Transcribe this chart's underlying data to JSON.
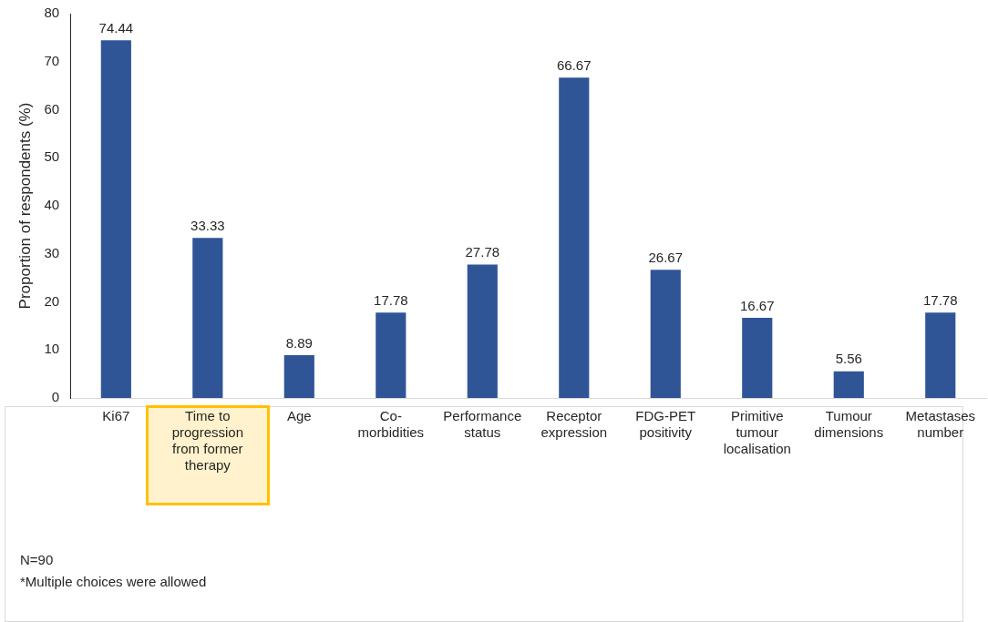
{
  "chart_data": {
    "type": "bar",
    "ylabel": "Proportion of respondents (%)",
    "categories": [
      "Ki67",
      "Time to progression from former therapy",
      "Age",
      "Co-morbidities",
      "Performance status",
      "Receptor expression",
      "FDG-PET positivity",
      "Primitive tumour localisation",
      "Tumour dimensions",
      "Metastases number"
    ],
    "values": [
      74.44,
      33.33,
      8.89,
      17.78,
      27.78,
      66.67,
      26.67,
      16.67,
      5.56,
      17.78
    ],
    "color": "#2f5597",
    "ylim": [
      0,
      80
    ],
    "yticks": [
      0,
      10,
      20,
      30,
      40,
      50,
      60,
      70,
      80
    ],
    "grid": false,
    "legend": false,
    "data_labels": true,
    "annotations": [
      "N=90",
      "*Multiple choices were allowed"
    ]
  }
}
